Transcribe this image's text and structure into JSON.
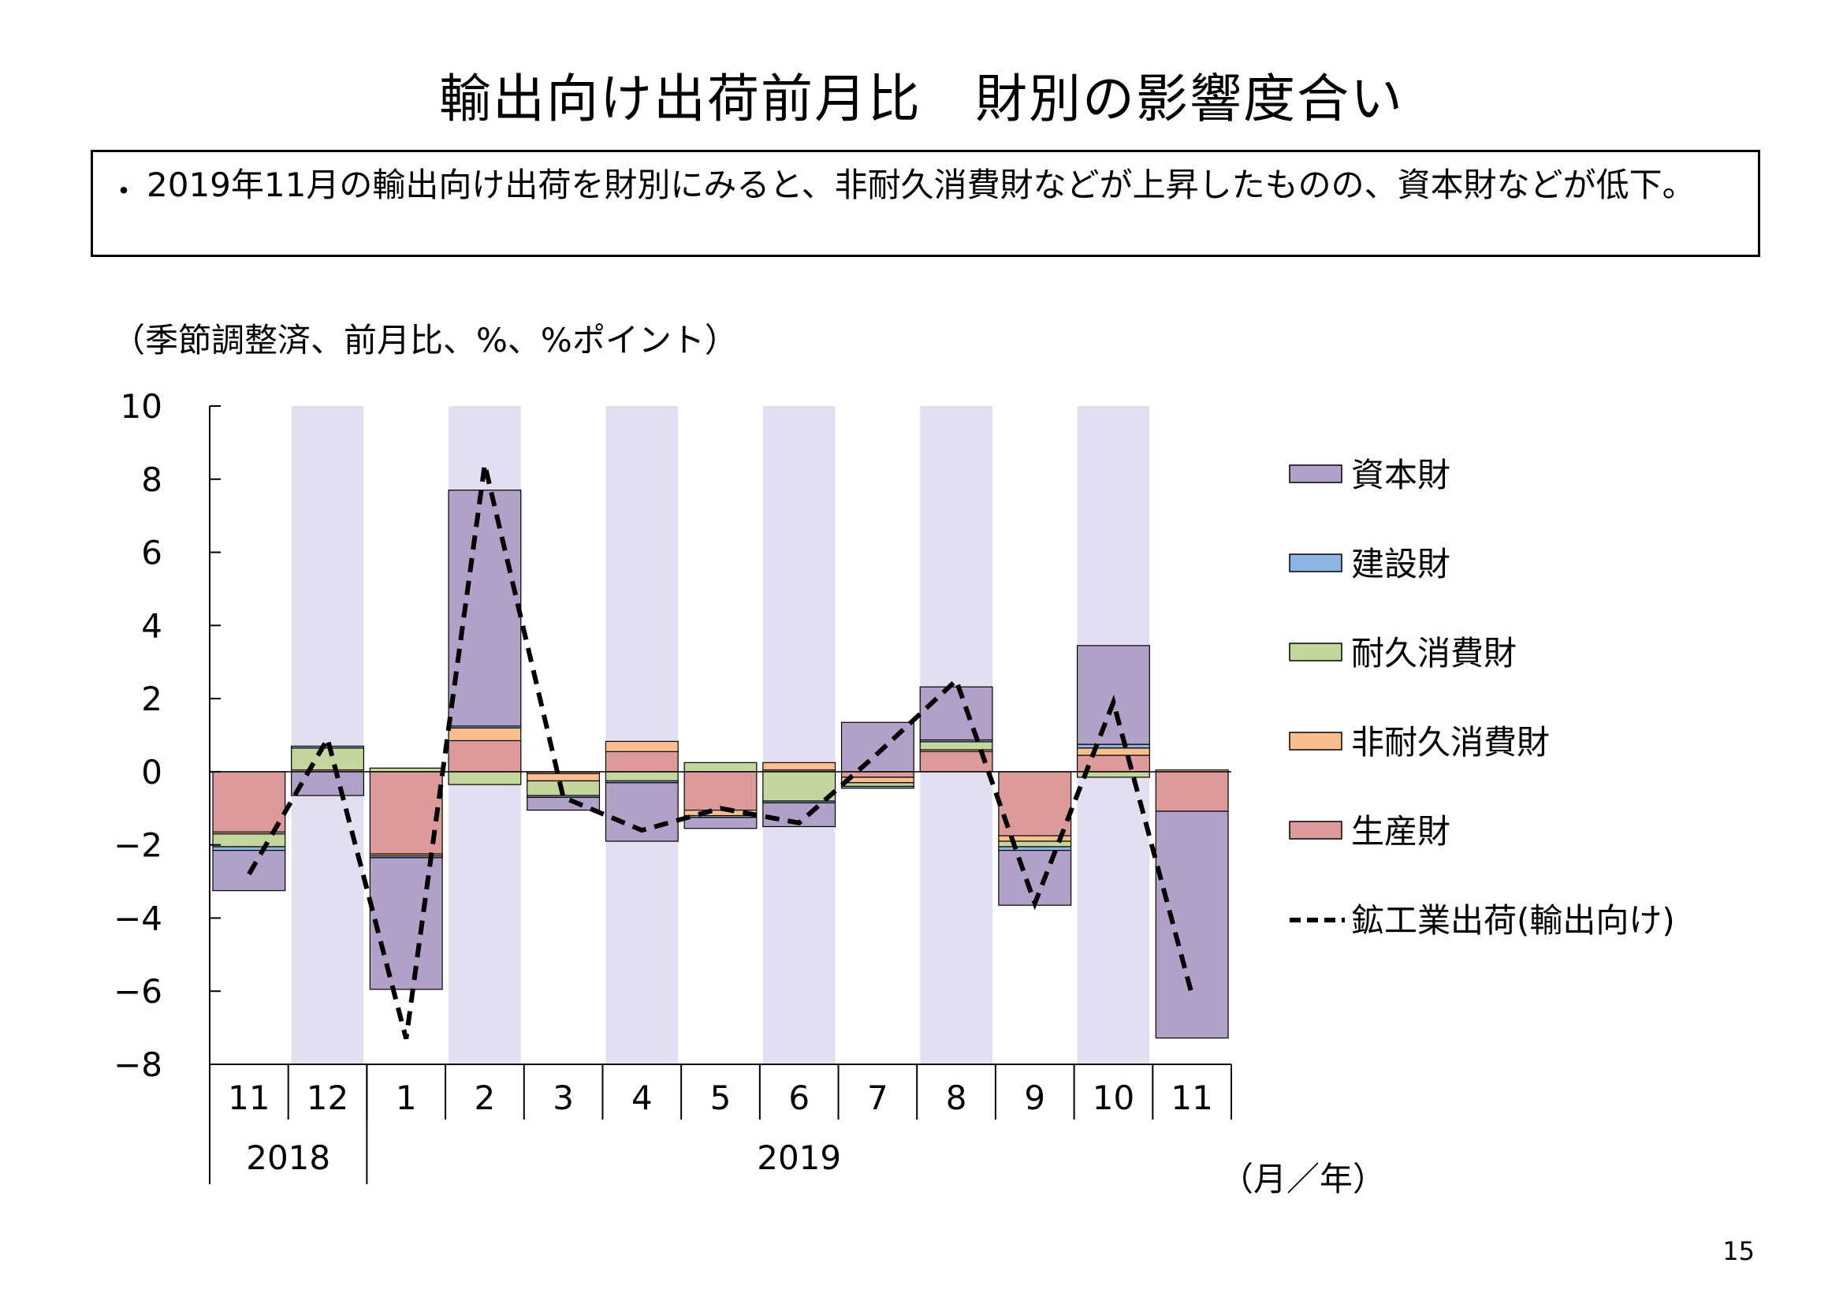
{
  "title": "輸出向け出荷前月比　財別の影響度合い",
  "note": {
    "bullet": "・",
    "text": "2019年11月の輸出向け出荷を財別にみると、非耐久消費財などが上昇したものの、資本財などが低下。"
  },
  "unit_label": "（季節調整済、前月比、%、%ポイント）",
  "x_axis_unit": "（月／年）",
  "page_number": "15",
  "chart_data": {
    "type": "bar",
    "stacked": true,
    "categories": [
      "11",
      "12",
      "1",
      "2",
      "3",
      "4",
      "5",
      "6",
      "7",
      "8",
      "9",
      "10",
      "11"
    ],
    "year_labels": [
      {
        "label": "2018",
        "from": 0,
        "to": 1
      },
      {
        "label": "2019",
        "from": 2,
        "to": 12
      }
    ],
    "ylim": [
      -8,
      10
    ],
    "yticks": [
      10,
      8,
      6,
      4,
      2,
      0,
      -2,
      -4,
      -6,
      -8
    ],
    "shaded_categories": [
      1,
      3,
      5,
      7,
      9,
      11
    ],
    "shade_color": "#e4dff0",
    "series": [
      {
        "name": "生産財",
        "color": "#dd9a9a",
        "values": [
          -1.65,
          0.0,
          -2.25,
          0.85,
          -0.05,
          0.55,
          -1.05,
          0.05,
          -0.15,
          0.55,
          -1.75,
          0.45,
          -1.08
        ]
      },
      {
        "name": "非耐久消費財",
        "color": "#f9be8e",
        "values": [
          -0.05,
          0.05,
          -0.05,
          0.35,
          -0.2,
          0.28,
          -0.15,
          0.2,
          -0.15,
          0.05,
          -0.15,
          0.2,
          0.05
        ]
      },
      {
        "name": "耐久消費財",
        "color": "#c3d69b",
        "values": [
          -0.35,
          0.6,
          0.1,
          -0.35,
          -0.4,
          -0.25,
          0.25,
          -0.8,
          -0.1,
          0.22,
          -0.15,
          -0.15,
          0.0
        ]
      },
      {
        "name": "建設財",
        "color": "#8db3e2",
        "values": [
          -0.1,
          0.05,
          -0.05,
          0.05,
          -0.05,
          -0.05,
          -0.05,
          -0.05,
          -0.05,
          0.05,
          -0.1,
          0.1,
          0.0
        ]
      },
      {
        "name": "資本財",
        "color": "#b1a0c7",
        "values": [
          -1.1,
          -0.65,
          -3.6,
          6.45,
          -0.35,
          -1.6,
          -0.3,
          -0.65,
          1.35,
          1.45,
          -1.5,
          2.7,
          -6.2
        ]
      }
    ],
    "line": {
      "name": "鉱工業出荷(輸出向け)",
      "color": "#000000",
      "dash": true,
      "values": [
        -2.8,
        0.9,
        -7.3,
        8.4,
        -0.7,
        -1.6,
        -1.0,
        -1.4,
        0.5,
        2.5,
        -3.6,
        1.9,
        -6.1
      ]
    },
    "legend": {
      "placement": "right",
      "order": [
        "資本財",
        "建設財",
        "耐久消費財",
        "非耐久消費財",
        "生産財",
        "鉱工業出荷(輸出向け)"
      ]
    }
  }
}
